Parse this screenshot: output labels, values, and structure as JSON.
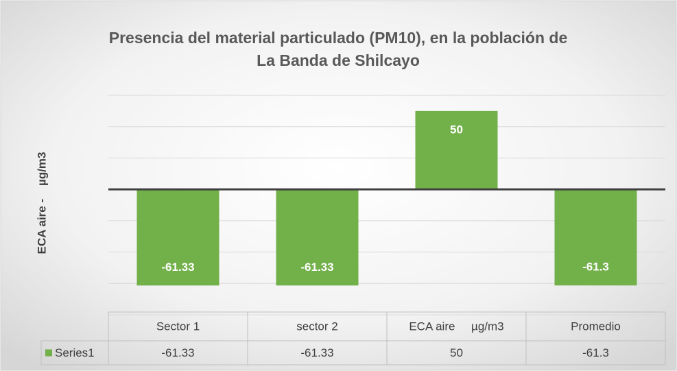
{
  "chart_data": {
    "type": "bar",
    "title": [
      "Presencia del material particulado (PM10), en la población de",
      "La Banda de Shilcayo"
    ],
    "y_label": "ECA aire -    µg/m3",
    "categories": [
      "Sector 1",
      "sector 2",
      "ECA aire     µg/m3",
      "Promedio"
    ],
    "series": [
      {
        "name": "Series1",
        "color": "#72b04a",
        "values": [
          -61.33,
          -61.33,
          50,
          -61.3
        ]
      }
    ],
    "ylim": [
      -80,
      60
    ],
    "yticks": [
      -80,
      -60,
      -40,
      -20,
      0,
      20,
      40,
      60
    ],
    "grid": true,
    "data_table": true
  }
}
